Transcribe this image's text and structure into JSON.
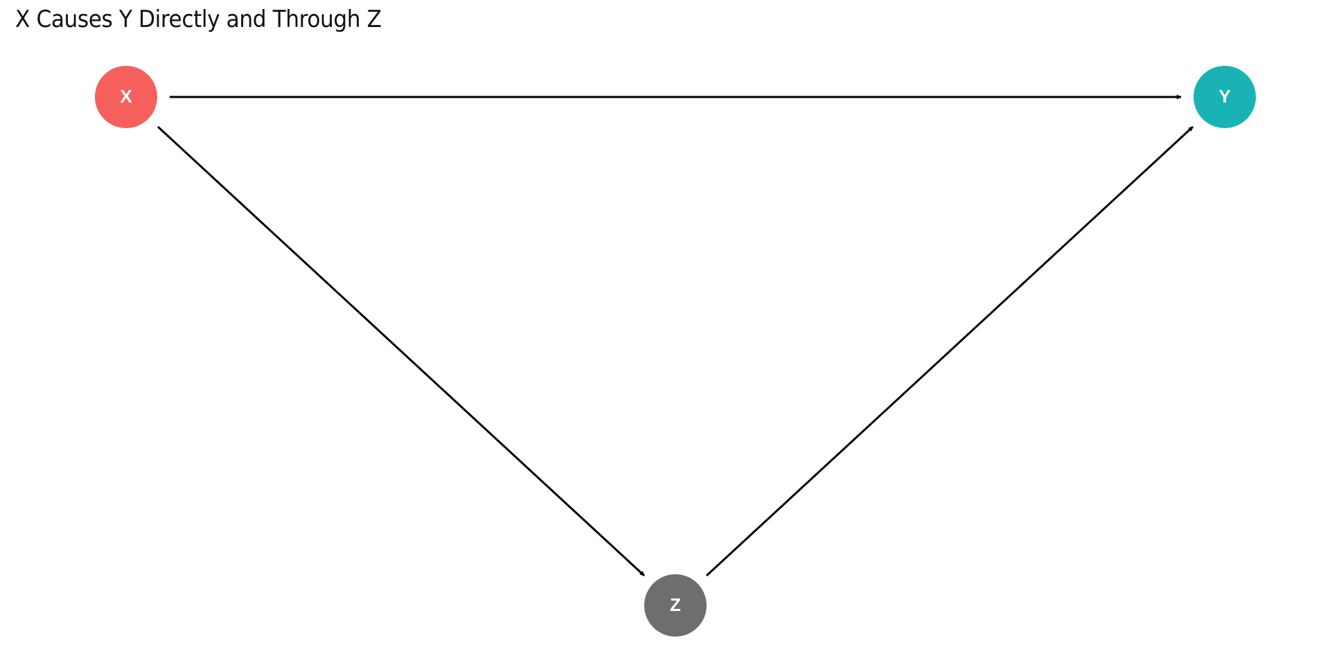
{
  "title": "X Causes Y Directly and Through Z",
  "nodes": [
    {
      "id": "x",
      "label": "X",
      "color": "#F5605C"
    },
    {
      "id": "y",
      "label": "Y",
      "color": "#1AB3B5"
    },
    {
      "id": "z",
      "label": "Z",
      "color": "#6E6E6E"
    }
  ],
  "edges": [
    {
      "from": "X",
      "to": "Y"
    },
    {
      "from": "X",
      "to": "Z"
    },
    {
      "from": "Z",
      "to": "Y"
    }
  ],
  "colors": {
    "edge": "#000000",
    "background": "#ffffff"
  }
}
